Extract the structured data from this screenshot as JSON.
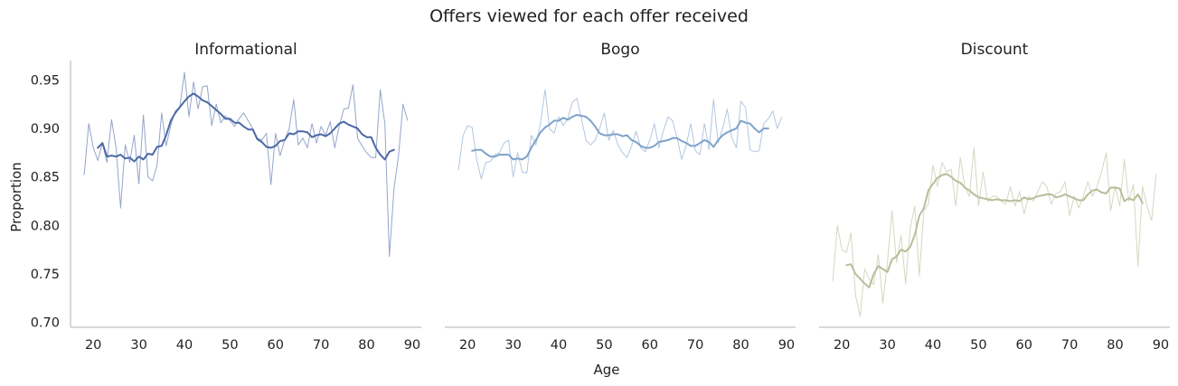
{
  "figure": {
    "title": "Offers viewed for each offer received",
    "xlabel": "Age",
    "ylabel": "Proportion"
  },
  "chart_data": {
    "type": "line",
    "title": "Offers viewed for each offer received",
    "xlabel": "Age",
    "ylabel": "Proportion",
    "xlim": [
      15,
      92
    ],
    "ylim": [
      0.695,
      0.97
    ],
    "x_ticks": [
      20,
      30,
      40,
      50,
      60,
      70,
      80,
      90
    ],
    "y_ticks": [
      "0.95",
      "0.90",
      "0.85",
      "0.80",
      "0.75",
      "0.70"
    ],
    "grid": false,
    "sharey": true,
    "panels": [
      {
        "title": "Informational",
        "color": "#4c69a6",
        "raw": {
          "x": [
            18,
            19,
            20,
            21,
            22,
            23,
            24,
            25,
            26,
            27,
            28,
            29,
            30,
            31,
            32,
            33,
            34,
            35,
            36,
            37,
            38,
            39,
            40,
            41,
            42,
            43,
            44,
            45,
            46,
            47,
            48,
            49,
            50,
            51,
            52,
            53,
            54,
            55,
            56,
            57,
            58,
            59,
            60,
            61,
            62,
            63,
            64,
            65,
            66,
            67,
            68,
            69,
            70,
            71,
            72,
            73,
            74,
            75,
            76,
            77,
            78,
            79,
            80,
            81,
            82,
            83,
            84,
            85,
            86,
            87,
            88,
            89
          ],
          "y": [
            0.852,
            0.905,
            0.88,
            0.867,
            0.885,
            0.865,
            0.909,
            0.88,
            0.818,
            0.883,
            0.865,
            0.893,
            0.843,
            0.914,
            0.85,
            0.846,
            0.862,
            0.916,
            0.882,
            0.903,
            0.918,
            0.922,
            0.958,
            0.912,
            0.948,
            0.92,
            0.943,
            0.944,
            0.903,
            0.925,
            0.906,
            0.913,
            0.908,
            0.902,
            0.91,
            0.916,
            0.908,
            0.9,
            0.89,
            0.888,
            0.895,
            0.842,
            0.895,
            0.872,
            0.888,
            0.9,
            0.93,
            0.883,
            0.89,
            0.88,
            0.905,
            0.885,
            0.902,
            0.893,
            0.907,
            0.88,
            0.903,
            0.92,
            0.921,
            0.945,
            0.89,
            0.882,
            0.875,
            0.87,
            0.87,
            0.94,
            0.905,
            0.768,
            0.838,
            0.872,
            0.925,
            0.908
          ]
        },
        "smooth": {
          "x": [
            21,
            22,
            23,
            24,
            25,
            26,
            27,
            28,
            29,
            30,
            31,
            32,
            33,
            34,
            35,
            36,
            37,
            38,
            39,
            40,
            41,
            42,
            43,
            44,
            45,
            46,
            47,
            48,
            49,
            50,
            51,
            52,
            53,
            54,
            55,
            56,
            57,
            58,
            59,
            60,
            61,
            62,
            63,
            64,
            65,
            66,
            67,
            68,
            69,
            70,
            71,
            72,
            73,
            74,
            75,
            76,
            77,
            78,
            79,
            80,
            81,
            82,
            83,
            84,
            85,
            86
          ],
          "y": [
            0.88,
            0.885,
            0.871,
            0.872,
            0.871,
            0.873,
            0.869,
            0.87,
            0.866,
            0.871,
            0.868,
            0.874,
            0.873,
            0.881,
            0.882,
            0.893,
            0.908,
            0.916,
            0.922,
            0.928,
            0.933,
            0.936,
            0.933,
            0.929,
            0.927,
            0.923,
            0.919,
            0.915,
            0.91,
            0.91,
            0.906,
            0.906,
            0.902,
            0.899,
            0.899,
            0.889,
            0.886,
            0.881,
            0.88,
            0.882,
            0.887,
            0.888,
            0.895,
            0.894,
            0.897,
            0.897,
            0.896,
            0.891,
            0.893,
            0.894,
            0.892,
            0.895,
            0.9,
            0.905,
            0.907,
            0.904,
            0.902,
            0.9,
            0.894,
            0.891,
            0.891,
            0.88,
            0.873,
            0.868,
            0.876,
            0.878
          ]
        }
      },
      {
        "title": "Bogo",
        "color": "#7ea2c9",
        "raw": {
          "x": [
            18,
            19,
            20,
            21,
            22,
            23,
            24,
            25,
            26,
            27,
            28,
            29,
            30,
            31,
            32,
            33,
            34,
            35,
            36,
            37,
            38,
            39,
            40,
            41,
            42,
            43,
            44,
            45,
            46,
            47,
            48,
            49,
            50,
            51,
            52,
            53,
            54,
            55,
            56,
            57,
            58,
            59,
            60,
            61,
            62,
            63,
            64,
            65,
            66,
            67,
            68,
            69,
            70,
            71,
            72,
            73,
            74,
            75,
            76,
            77,
            78,
            79,
            80,
            81,
            82,
            83,
            84,
            85,
            86,
            87,
            88,
            89
          ],
          "y": [
            0.857,
            0.893,
            0.903,
            0.901,
            0.868,
            0.848,
            0.865,
            0.866,
            0.873,
            0.875,
            0.885,
            0.888,
            0.85,
            0.875,
            0.855,
            0.854,
            0.893,
            0.883,
            0.905,
            0.94,
            0.9,
            0.895,
            0.912,
            0.903,
            0.91,
            0.927,
            0.931,
            0.91,
            0.888,
            0.883,
            0.888,
            0.9,
            0.916,
            0.888,
            0.898,
            0.883,
            0.875,
            0.87,
            0.882,
            0.897,
            0.88,
            0.876,
            0.888,
            0.905,
            0.88,
            0.898,
            0.912,
            0.908,
            0.89,
            0.868,
            0.883,
            0.905,
            0.877,
            0.873,
            0.905,
            0.878,
            0.93,
            0.885,
            0.9,
            0.92,
            0.89,
            0.88,
            0.928,
            0.922,
            0.878,
            0.876,
            0.877,
            0.905,
            0.91,
            0.918,
            0.9,
            0.912
          ]
        },
        "smooth": {
          "x": [
            21,
            22,
            23,
            24,
            25,
            26,
            27,
            28,
            29,
            30,
            31,
            32,
            33,
            34,
            35,
            36,
            37,
            38,
            39,
            40,
            41,
            42,
            43,
            44,
            45,
            46,
            47,
            48,
            49,
            50,
            51,
            52,
            53,
            54,
            55,
            56,
            57,
            58,
            59,
            60,
            61,
            62,
            63,
            64,
            65,
            66,
            67,
            68,
            69,
            70,
            71,
            72,
            73,
            74,
            75,
            76,
            77,
            78,
            79,
            80,
            81,
            82,
            83,
            84,
            85,
            86
          ],
          "y": [
            0.877,
            0.878,
            0.878,
            0.874,
            0.871,
            0.871,
            0.873,
            0.873,
            0.873,
            0.868,
            0.869,
            0.868,
            0.871,
            0.88,
            0.888,
            0.896,
            0.901,
            0.904,
            0.908,
            0.908,
            0.911,
            0.909,
            0.912,
            0.914,
            0.913,
            0.912,
            0.908,
            0.902,
            0.895,
            0.893,
            0.893,
            0.894,
            0.894,
            0.892,
            0.893,
            0.888,
            0.886,
            0.882,
            0.88,
            0.88,
            0.882,
            0.886,
            0.887,
            0.888,
            0.89,
            0.89,
            0.887,
            0.885,
            0.882,
            0.882,
            0.885,
            0.888,
            0.886,
            0.881,
            0.888,
            0.893,
            0.896,
            0.898,
            0.9,
            0.908,
            0.906,
            0.905,
            0.9,
            0.896,
            0.9,
            0.9
          ]
        }
      },
      {
        "title": "Discount",
        "color": "#b9bd9a",
        "raw": {
          "x": [
            18,
            19,
            20,
            21,
            22,
            23,
            24,
            25,
            26,
            27,
            28,
            29,
            30,
            31,
            32,
            33,
            34,
            35,
            36,
            37,
            38,
            39,
            40,
            41,
            42,
            43,
            44,
            45,
            46,
            47,
            48,
            49,
            50,
            51,
            52,
            53,
            54,
            55,
            56,
            57,
            58,
            59,
            60,
            61,
            62,
            63,
            64,
            65,
            66,
            67,
            68,
            69,
            70,
            71,
            72,
            73,
            74,
            75,
            76,
            77,
            78,
            79,
            80,
            81,
            82,
            83,
            84,
            85,
            86,
            87,
            88,
            89
          ],
          "y": [
            0.742,
            0.8,
            0.775,
            0.772,
            0.792,
            0.728,
            0.706,
            0.755,
            0.745,
            0.739,
            0.77,
            0.72,
            0.762,
            0.815,
            0.762,
            0.79,
            0.74,
            0.797,
            0.82,
            0.748,
            0.815,
            0.822,
            0.862,
            0.84,
            0.865,
            0.855,
            0.858,
            0.82,
            0.87,
            0.84,
            0.83,
            0.88,
            0.82,
            0.855,
            0.825,
            0.83,
            0.83,
            0.825,
            0.822,
            0.84,
            0.82,
            0.835,
            0.812,
            0.83,
            0.825,
            0.835,
            0.845,
            0.84,
            0.822,
            0.833,
            0.835,
            0.845,
            0.81,
            0.83,
            0.818,
            0.83,
            0.845,
            0.83,
            0.84,
            0.855,
            0.875,
            0.815,
            0.84,
            0.82,
            0.868,
            0.825,
            0.842,
            0.758,
            0.84,
            0.82,
            0.805,
            0.853
          ]
        },
        "smooth": {
          "x": [
            21,
            22,
            23,
            24,
            25,
            26,
            27,
            28,
            29,
            30,
            31,
            32,
            33,
            34,
            35,
            36,
            37,
            38,
            39,
            40,
            41,
            42,
            43,
            44,
            45,
            46,
            47,
            48,
            49,
            50,
            51,
            52,
            53,
            54,
            55,
            56,
            57,
            58,
            59,
            60,
            61,
            62,
            63,
            64,
            65,
            66,
            67,
            68,
            69,
            70,
            71,
            72,
            73,
            74,
            75,
            76,
            77,
            78,
            79,
            80,
            81,
            82,
            83,
            84,
            85,
            86
          ],
          "y": [
            0.759,
            0.76,
            0.75,
            0.745,
            0.74,
            0.736,
            0.75,
            0.758,
            0.755,
            0.752,
            0.765,
            0.768,
            0.775,
            0.773,
            0.778,
            0.79,
            0.81,
            0.818,
            0.836,
            0.843,
            0.849,
            0.852,
            0.853,
            0.85,
            0.846,
            0.844,
            0.839,
            0.836,
            0.832,
            0.829,
            0.828,
            0.827,
            0.826,
            0.827,
            0.826,
            0.826,
            0.825,
            0.826,
            0.825,
            0.829,
            0.827,
            0.828,
            0.83,
            0.831,
            0.832,
            0.832,
            0.829,
            0.83,
            0.832,
            0.83,
            0.828,
            0.826,
            0.826,
            0.832,
            0.836,
            0.837,
            0.834,
            0.833,
            0.839,
            0.839,
            0.838,
            0.825,
            0.828,
            0.826,
            0.832,
            0.823
          ]
        }
      }
    ]
  }
}
